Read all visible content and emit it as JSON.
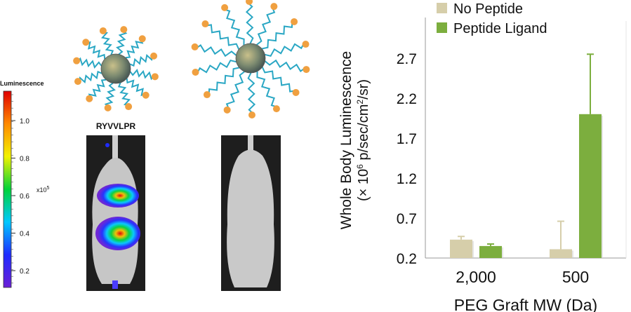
{
  "colorbar": {
    "title": "Luminescence",
    "multiplier": "x10",
    "multiplier_exp": "5",
    "ticks": [
      "0.2",
      "0.4",
      "0.6",
      "0.8",
      "1.0"
    ],
    "colors": [
      "#6a1fd6",
      "#1f2cff",
      "#00c8ff",
      "#00d23a",
      "#f2f200",
      "#ff8a00",
      "#e00000"
    ]
  },
  "images": {
    "mouse_left_label": "RYVVLPR"
  },
  "chart_data": {
    "type": "bar",
    "categories": [
      "2,000",
      "500"
    ],
    "series": [
      {
        "name": "No Peptide",
        "color": "#d6ceaa",
        "values": [
          0.43,
          0.31
        ],
        "error_upper": [
          0.47,
          0.66
        ]
      },
      {
        "name": "Peptide Ligand",
        "color": "#7cae3e",
        "values": [
          0.35,
          2.0
        ],
        "error_upper": [
          0.375,
          2.75
        ]
      }
    ],
    "ylabel_line1": "Whole Body Luminescence",
    "ylabel_line2_pre": "(× 10",
    "ylabel_line2_exp": "6",
    "ylabel_line2_post": " p/sec/cm",
    "ylabel_line2_exp2": "2",
    "ylabel_line2_end": "/sr)",
    "xlabel": "PEG Graft MW (Da)",
    "yticks": [
      "0.2",
      "0.7",
      "1.2",
      "1.7",
      "2.2",
      "2.7"
    ],
    "ylim": [
      0.2,
      3.0
    ],
    "legend_position": "top-left",
    "grid": false
  }
}
